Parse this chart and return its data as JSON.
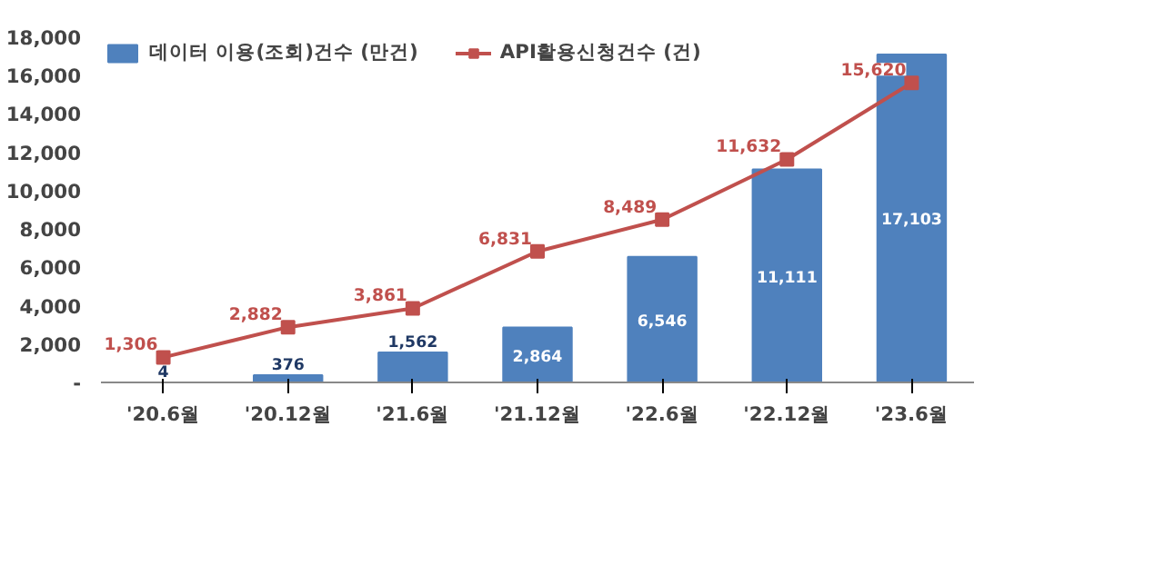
{
  "chart_data": {
    "type": "bar",
    "categories": [
      "'20.6월",
      "'20.12월",
      "'21.6월",
      "'21.12월",
      "'22.6월",
      "'22.12월",
      "'23.6월"
    ],
    "series": [
      {
        "name": "데이터 이용(조회)건수 (만건)",
        "type": "bar",
        "color": "#4f81bd",
        "values": [
          4,
          376,
          1562,
          2864,
          6546,
          11111,
          17103
        ],
        "value_labels": [
          "4",
          "376",
          "1,562",
          "2,864",
          "6,546",
          "11,111",
          "17,103"
        ]
      },
      {
        "name": "API활용신청건수 (건)",
        "type": "line",
        "color": "#c0504d",
        "marker": "square",
        "values": [
          1306,
          2882,
          3861,
          6831,
          8489,
          11632,
          15620
        ],
        "value_labels": [
          "1,306",
          "2,882",
          "3,861",
          "6,831",
          "8,489",
          "11,632",
          "15,620"
        ]
      }
    ],
    "ylim": [
      0,
      18000
    ],
    "yticks": [
      {
        "value": 0,
        "label": "-"
      },
      {
        "value": 2000,
        "label": "2,000"
      },
      {
        "value": 4000,
        "label": "4,000"
      },
      {
        "value": 6000,
        "label": "6,000"
      },
      {
        "value": 8000,
        "label": "8,000"
      },
      {
        "value": 10000,
        "label": "10,000"
      },
      {
        "value": 12000,
        "label": "12,000"
      },
      {
        "value": 14000,
        "label": "14,000"
      },
      {
        "value": 16000,
        "label": "16,000"
      },
      {
        "value": 18000,
        "label": "18,000"
      }
    ],
    "grid": false,
    "legend": "top left"
  }
}
